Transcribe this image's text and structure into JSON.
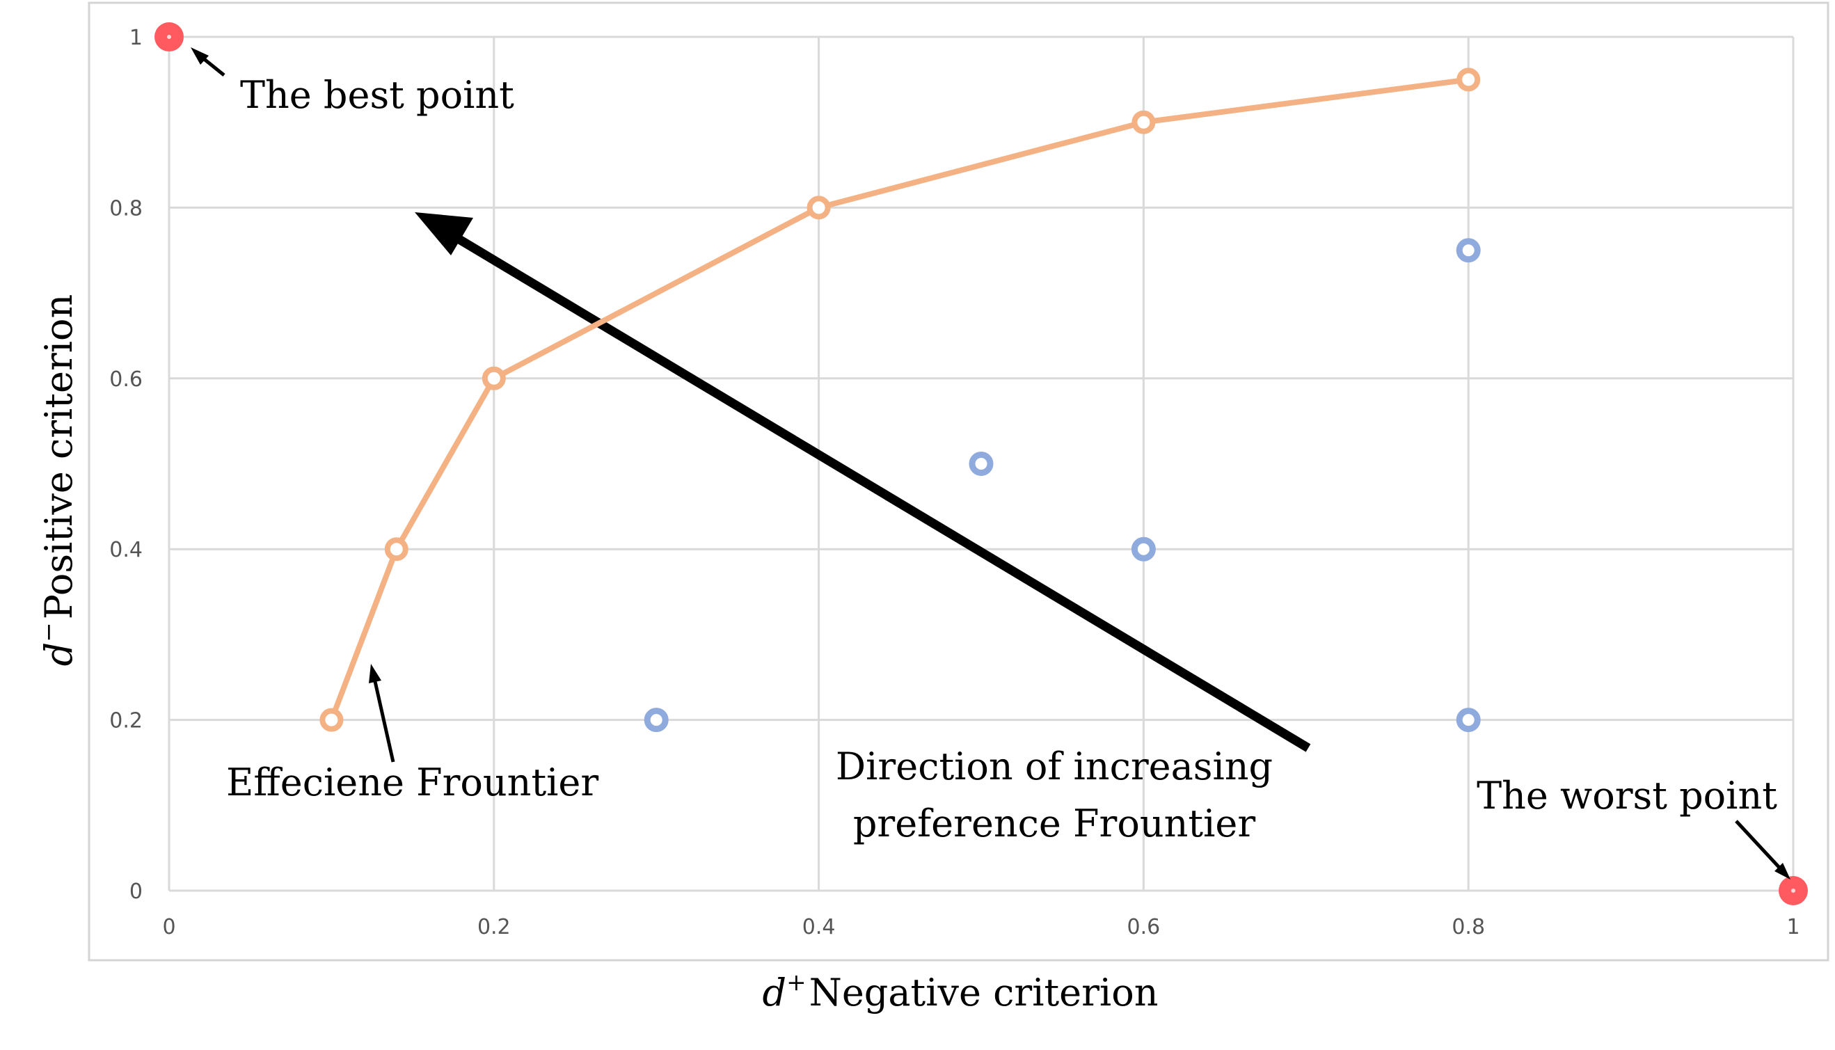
{
  "chart_data": {
    "type": "scatter",
    "xlim": [
      0,
      1
    ],
    "ylim": [
      0,
      1
    ],
    "grid": true,
    "legend": "none",
    "x_ticks": [
      "0",
      "0.2",
      "0.4",
      "0.6",
      "0.8",
      "1"
    ],
    "y_ticks": [
      "0",
      "0.2",
      "0.4",
      "0.6",
      "0.8",
      "1"
    ],
    "xlabel": {
      "symbol": "d",
      "sup": "+",
      "text": "Negative  criterion"
    },
    "ylabel": {
      "symbol": "d",
      "sup": "−",
      "text": "Positive  criterion"
    },
    "series": [
      {
        "kind": "line-markers",
        "color": "#F4B183",
        "points": [
          {
            "x": 0.1,
            "y": 0.2
          },
          {
            "x": 0.14,
            "y": 0.4
          },
          {
            "x": 0.2,
            "y": 0.6
          },
          {
            "x": 0.4,
            "y": 0.8
          },
          {
            "x": 0.6,
            "y": 0.9
          },
          {
            "x": 0.8,
            "y": 0.95
          }
        ]
      },
      {
        "kind": "markers",
        "color": "#8FAADC",
        "points": [
          {
            "x": 0.3,
            "y": 0.2
          },
          {
            "x": 0.5,
            "y": 0.5
          },
          {
            "x": 0.6,
            "y": 0.4
          },
          {
            "x": 0.8,
            "y": 0.75
          },
          {
            "x": 0.8,
            "y": 0.2
          }
        ]
      },
      {
        "kind": "special",
        "color": "#FF5A5F",
        "points": [
          {
            "x": 0,
            "y": 1
          },
          {
            "x": 1,
            "y": 0
          }
        ]
      }
    ],
    "annotations": {
      "best_point": "The best point",
      "worst_point": "The worst point",
      "frontier": "Effeciene Frountier",
      "direction_line1": "Direction of increasing",
      "direction_line2": "preference Frountier"
    }
  }
}
